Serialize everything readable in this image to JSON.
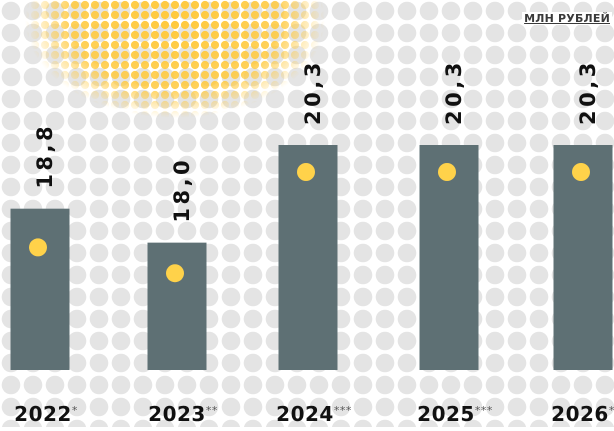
{
  "unit_label": "МЛН РУБЛЕЙ",
  "colors": {
    "background": "#ffffff",
    "dots": "#e4e4e4",
    "bar": "#5e7074",
    "marker": "#ffd24a",
    "sun": "#ffc93c",
    "text": "#111111",
    "suffix": "#555555"
  },
  "chart_data": {
    "type": "bar",
    "title": "",
    "xlabel": "",
    "ylabel": "",
    "unit": "МЛН РУБЛЕЙ",
    "categories": [
      "2022",
      "2023",
      "2024",
      "2025",
      "2026"
    ],
    "category_suffixes": [
      "*",
      "**",
      "***",
      "***",
      "***"
    ],
    "values": [
      18.8,
      18.0,
      20.3,
      20.3,
      20.3
    ],
    "value_labels": [
      "18,8",
      "18,0",
      "20,3",
      "20,3",
      "20,3"
    ],
    "ylim": [
      15.0,
      20.9
    ],
    "grid": false,
    "legend": "none"
  }
}
